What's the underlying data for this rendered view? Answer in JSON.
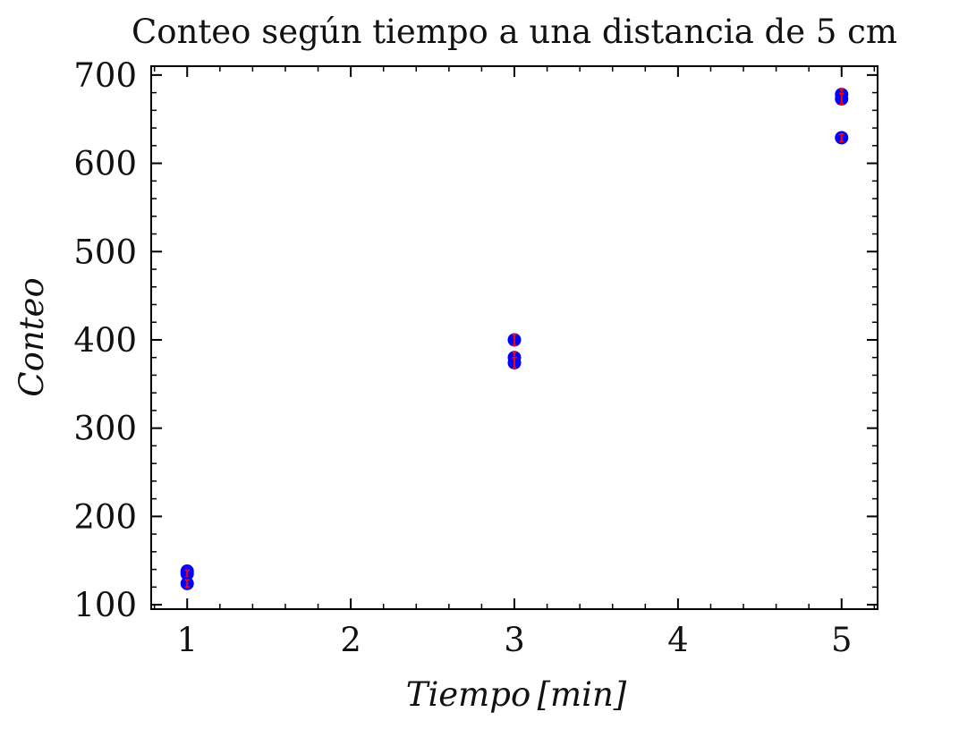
{
  "chart_data": {
    "type": "scatter",
    "title": "Conteo según tiempo a una distancia de 5 cm",
    "xlabel": "Tiempo [min]",
    "ylabel": "Conteo",
    "xlim": [
      0.78,
      5.22
    ],
    "ylim": [
      95,
      710
    ],
    "x_ticks": [
      1,
      2,
      3,
      4,
      5
    ],
    "y_ticks": [
      100,
      200,
      300,
      400,
      500,
      600,
      700
    ],
    "x_minor_step": 0.2,
    "y_minor_step": 20,
    "grid": false,
    "marker_color": "#0000ff",
    "errorbar_color": "#ff0000",
    "series": [
      {
        "x": [
          1,
          1,
          1,
          3,
          3,
          3,
          5,
          5,
          5
        ],
        "y": [
          138,
          135,
          124,
          400,
          380,
          374,
          678,
          673,
          629
        ],
        "yerr": [
          4,
          4,
          4,
          6,
          6,
          6,
          6,
          6,
          4
        ]
      }
    ]
  }
}
